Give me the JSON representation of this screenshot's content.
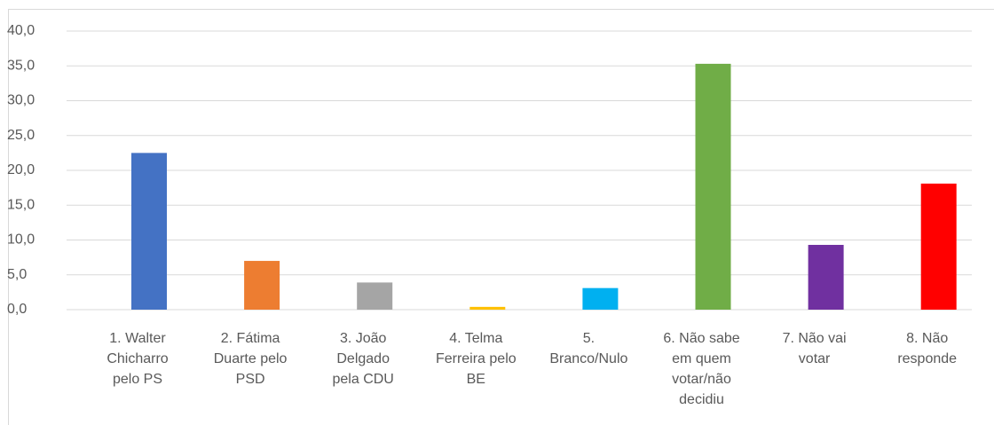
{
  "chart_data": {
    "type": "bar",
    "categories": [
      "1. Walter\nChicharro\npelo PS",
      "2. Fátima\nDuarte  pelo\nPSD",
      "3. João\nDelgado\npela  CDU",
      "4. Telma\nFerreira  pelo\nBE",
      "5.\nBranco/Nulo",
      "6. Não sabe\nem quem\nvotar/não\ndecidiu",
      "7. Não vai\nvotar",
      "8. Não\nresponde"
    ],
    "values": [
      22.5,
      7.0,
      3.9,
      0.4,
      3.1,
      35.3,
      9.3,
      18.1
    ],
    "colors": [
      "#4472c4",
      "#ed7d31",
      "#a5a5a5",
      "#ffc000",
      "#00b0f0",
      "#70ad47",
      "#7030a0",
      "#ff0000"
    ],
    "ylim": [
      0,
      40
    ],
    "yticks": [
      {
        "value": 0,
        "label": "0,0"
      },
      {
        "value": 5,
        "label": "5,0"
      },
      {
        "value": 10,
        "label": "10,0"
      },
      {
        "value": 15,
        "label": "15,0"
      },
      {
        "value": 20,
        "label": "20,0"
      },
      {
        "value": 25,
        "label": "25,0"
      },
      {
        "value": 30,
        "label": "30,0"
      },
      {
        "value": 35,
        "label": "35,0"
      },
      {
        "value": 40,
        "label": "40,0"
      }
    ],
    "grid": true
  }
}
